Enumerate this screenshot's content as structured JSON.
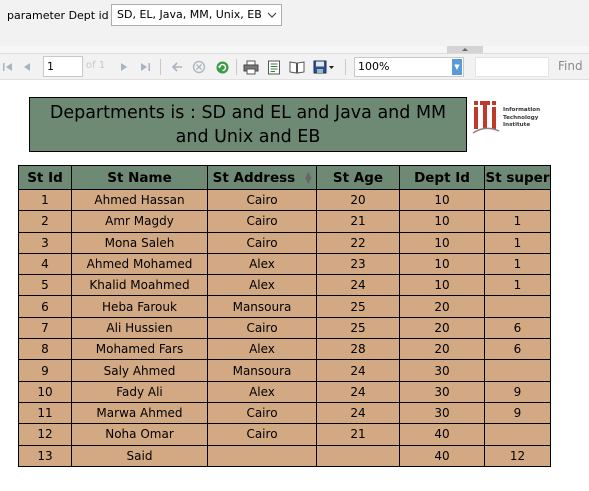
{
  "parameter": {
    "label": "parameter Dept id",
    "value": "SD, EL, Java, MM, Unix, EB"
  },
  "toolbar": {
    "page_number": "1",
    "page_of": "of 1",
    "zoom": "100%",
    "find_label": "Find",
    "icons": [
      "first-page-icon",
      "prev-page-icon",
      "next-page-icon",
      "last-page-icon",
      "back-icon",
      "stop-icon",
      "refresh-icon",
      "print-icon",
      "page-setup-icon",
      "print-layout-icon",
      "export-icon"
    ]
  },
  "report": {
    "title_line1": "Departments is : SD and EL and Java and MM",
    "title_line2": "and Unix and EB",
    "logo_text": [
      "Information",
      "Technology",
      "Institute"
    ],
    "colors": {
      "header_bg": "#6f8a74",
      "cell_bg": "#d3a984",
      "logo_red": "#c0392b"
    },
    "columns": [
      "St Id",
      "St Name",
      "St Address",
      "St Age",
      "Dept Id",
      "St super"
    ],
    "rows": [
      [
        "1",
        "Ahmed Hassan",
        "Cairo",
        "20",
        "10",
        ""
      ],
      [
        "2",
        "Amr Magdy",
        "Cairo",
        "21",
        "10",
        "1"
      ],
      [
        "3",
        "Mona Saleh",
        "Cairo",
        "22",
        "10",
        "1"
      ],
      [
        "4",
        "Ahmed Mohamed",
        "Alex",
        "23",
        "10",
        "1"
      ],
      [
        "5",
        "Khalid Moahmed",
        "Alex",
        "24",
        "10",
        "1"
      ],
      [
        "6",
        "Heba Farouk",
        "Mansoura",
        "25",
        "20",
        ""
      ],
      [
        "7",
        "Ali Hussien",
        "Cairo",
        "25",
        "20",
        "6"
      ],
      [
        "8",
        "Mohamed Fars",
        "Alex",
        "28",
        "20",
        "6"
      ],
      [
        "9",
        "Saly Ahmed",
        "Mansoura",
        "24",
        "30",
        ""
      ],
      [
        "10",
        "Fady Ali",
        "Alex",
        "24",
        "30",
        "9"
      ],
      [
        "11",
        "Marwa Ahmed",
        "Cairo",
        "24",
        "30",
        "9"
      ],
      [
        "12",
        "Noha Omar",
        "Cairo",
        "21",
        "40",
        ""
      ],
      [
        "13",
        "Said",
        "",
        "",
        "40",
        "12"
      ]
    ]
  }
}
